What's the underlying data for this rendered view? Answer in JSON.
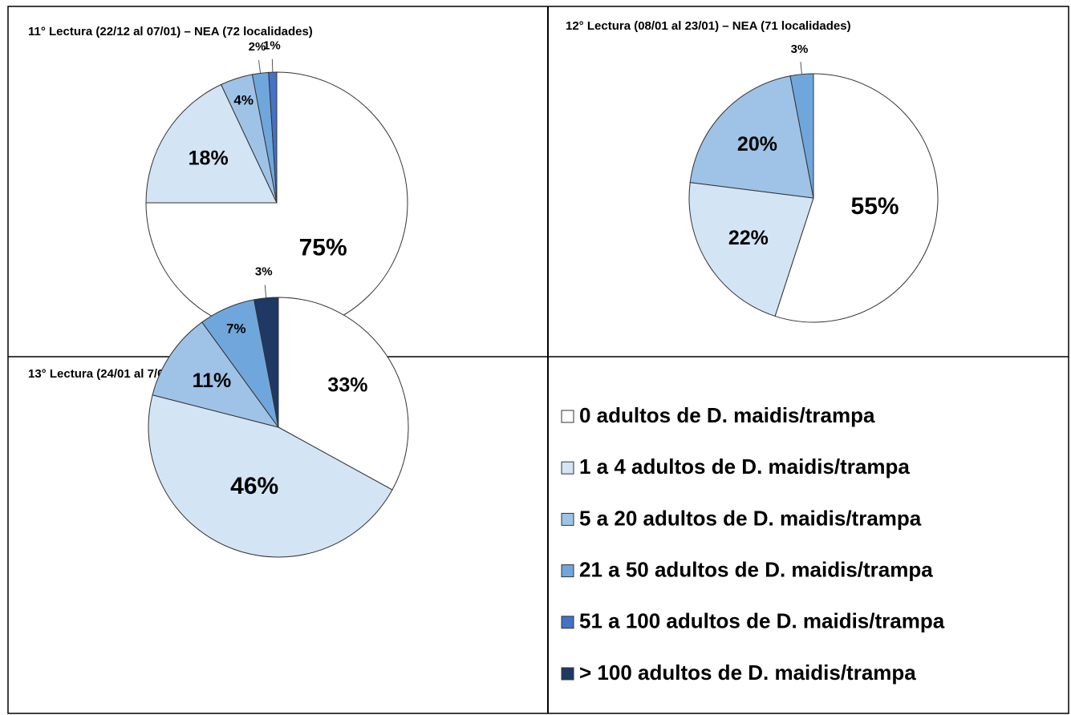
{
  "chart_data": [
    {
      "type": "pie",
      "title": "11° Lectura (22/12 al 07/01) – NEA (72 localidades)",
      "values": [
        75,
        18,
        4,
        2,
        1,
        null
      ],
      "value_labels": [
        "75%",
        "18%",
        "4%",
        "2%",
        "1%",
        null
      ]
    },
    {
      "type": "pie",
      "title": "12° Lectura (08/01 al 23/01) – NEA (71 localidades)",
      "values": [
        55,
        22,
        20,
        3,
        null,
        null
      ],
      "value_labels": [
        "55%",
        "22%",
        "20%",
        "3%",
        null,
        null
      ]
    },
    {
      "type": "pie",
      "title": "13° Lectura (24/01 al 7/02) – NEA (75 localidades)",
      "values": [
        33,
        46,
        11,
        7,
        null,
        3
      ],
      "value_labels": [
        "33%",
        "46%",
        "11%",
        "7%",
        null,
        "3%"
      ]
    }
  ],
  "legend": {
    "items": [
      {
        "name": "0 adultos de D. maidis/trampa",
        "color": "#ffffff"
      },
      {
        "name": "1 a 4 adultos de D. maidis/trampa",
        "color": "#d3e4f5"
      },
      {
        "name": "5 a 20 adultos de D. maidis/trampa",
        "color": "#9fc3e7"
      },
      {
        "name": "21 a 50 adultos de D. maidis/trampa",
        "color": "#6fa7dd"
      },
      {
        "name": "51 a 100 adultos de D. maidis/trampa",
        "color": "#4472c4"
      },
      {
        "name": "> 100 adultos de D. maidis/trampa",
        "color": "#1f3864"
      }
    ]
  }
}
